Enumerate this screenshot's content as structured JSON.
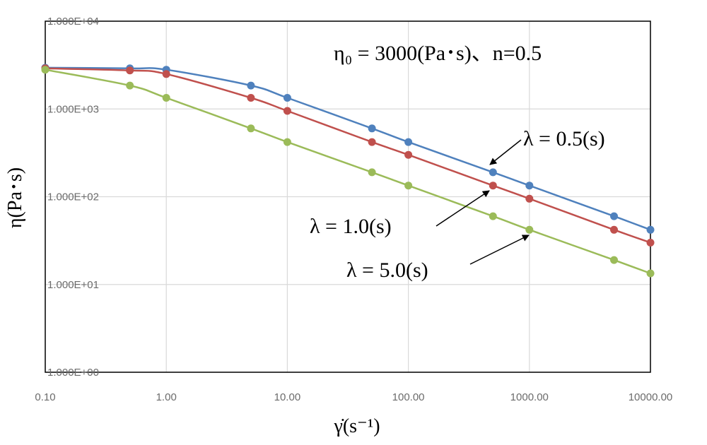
{
  "chart_data": {
    "type": "line",
    "xscale": "log",
    "yscale": "log",
    "xlim": [
      0.1,
      10000
    ],
    "ylim": [
      1,
      10000
    ],
    "grid": true,
    "xlabel": "γ̇(s⁻¹)",
    "ylabel": "η(Pa･s)",
    "x_tick_labels": [
      "0.10",
      "1.00",
      "10.00",
      "100.00",
      "1000.00",
      "10000.00"
    ],
    "y_tick_labels": [
      "1.000E+00",
      "1.000E+01",
      "1.000E+02",
      "1.000E+03",
      "1.000E+04"
    ],
    "x": [
      0.1,
      0.5,
      1,
      5,
      10,
      50,
      100,
      500,
      1000,
      5000,
      10000
    ],
    "series": [
      {
        "name": "λ = 0.5(s)",
        "color": "#4f81bd",
        "values": [
          2950,
          2900,
          2800,
          1850,
          1340,
          600,
          420,
          190,
          134,
          60,
          42
        ]
      },
      {
        "name": "λ = 1.0(s)",
        "color": "#c0504d",
        "values": [
          2900,
          2750,
          2500,
          1340,
          950,
          420,
          300,
          134,
          95,
          42,
          30
        ]
      },
      {
        "name": "λ = 5.0(s)",
        "color": "#9bbb59",
        "values": [
          2800,
          1850,
          1340,
          600,
          420,
          190,
          134,
          60,
          42,
          19,
          13.4
        ]
      }
    ],
    "annotations": [
      {
        "id": "params",
        "text": "η₀ = 3000(Pa･s)、n=0.5"
      },
      {
        "id": "l05",
        "text": "λ = 0.5(s)"
      },
      {
        "id": "l10",
        "text": "λ = 1.0(s)"
      },
      {
        "id": "l50",
        "text": "λ = 5.0(s)"
      }
    ]
  }
}
